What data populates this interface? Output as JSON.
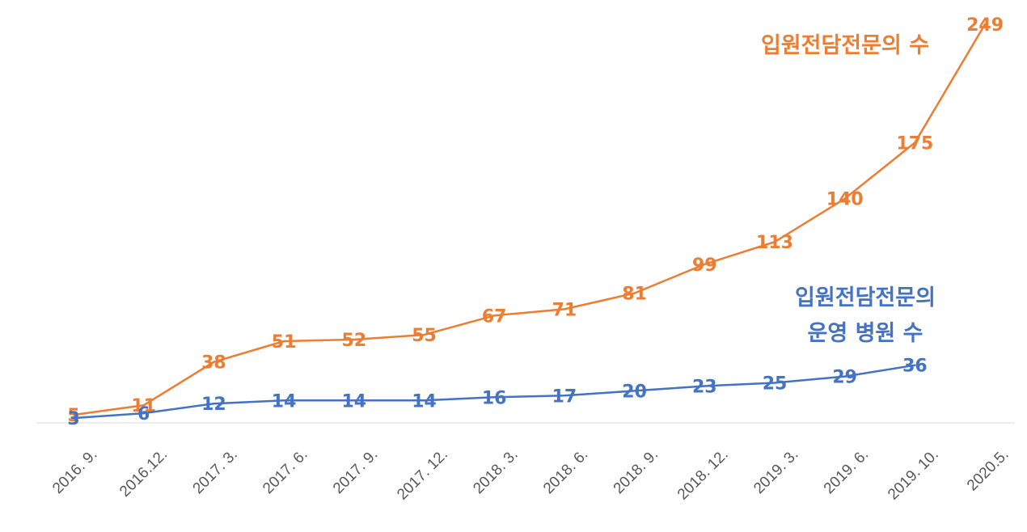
{
  "chart_data": {
    "type": "line",
    "title": "",
    "xlabel": "",
    "ylabel": "",
    "categories": [
      "2016. 9.",
      "2016.12.",
      "2017. 3.",
      "2017. 6.",
      "2017. 9.",
      "2017. 12.",
      "2018. 3.",
      "2018. 6.",
      "2018. 9.",
      "2018. 12.",
      "2019. 3.",
      "2019. 6.",
      "2019. 10.",
      "2020.5."
    ],
    "ylim": [
      0,
      255
    ],
    "grid": false,
    "legend": "none",
    "series": [
      {
        "name_lines": [
          "입원전담전문의 수"
        ],
        "color": "#ED7D31",
        "values": [
          5,
          11,
          38,
          51,
          52,
          55,
          67,
          71,
          81,
          99,
          113,
          140,
          175,
          249
        ]
      },
      {
        "name_lines": [
          "입원전담전문의",
          "운영 병원 수"
        ],
        "color": "#4472C4",
        "values": [
          3,
          6,
          12,
          14,
          14,
          14,
          16,
          17,
          20,
          23,
          25,
          29,
          36,
          null
        ]
      }
    ]
  }
}
